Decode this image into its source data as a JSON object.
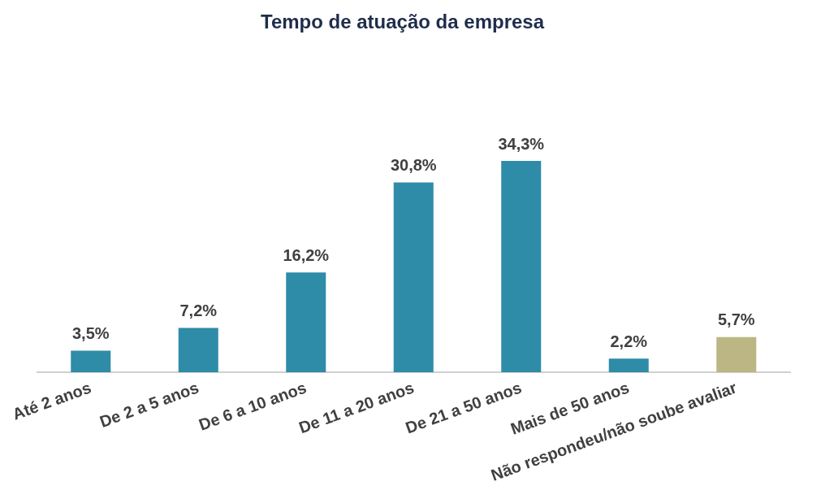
{
  "chart_data": {
    "type": "bar",
    "title": "Tempo de atuação da empresa",
    "categories": [
      "Até 2 anos",
      "De 2 a 5 anos",
      "De 6 a 10 anos",
      "De 11 a 20 anos",
      "De 21 a 50 anos",
      "Mais de 50 anos",
      "Não respondeu/não soube avaliar"
    ],
    "values": [
      3.5,
      7.2,
      16.2,
      30.8,
      34.3,
      2.2,
      5.7
    ],
    "colors": [
      "#2e8ca8",
      "#2e8ca8",
      "#2e8ca8",
      "#2e8ca8",
      "#2e8ca8",
      "#2e8ca8",
      "#bcb684"
    ],
    "value_labels": [
      "3,5%",
      "7,2%",
      "16,2%",
      "30,8%",
      "34,3%",
      "2,2%",
      "5,7%"
    ],
    "grid": false,
    "legend": false
  }
}
